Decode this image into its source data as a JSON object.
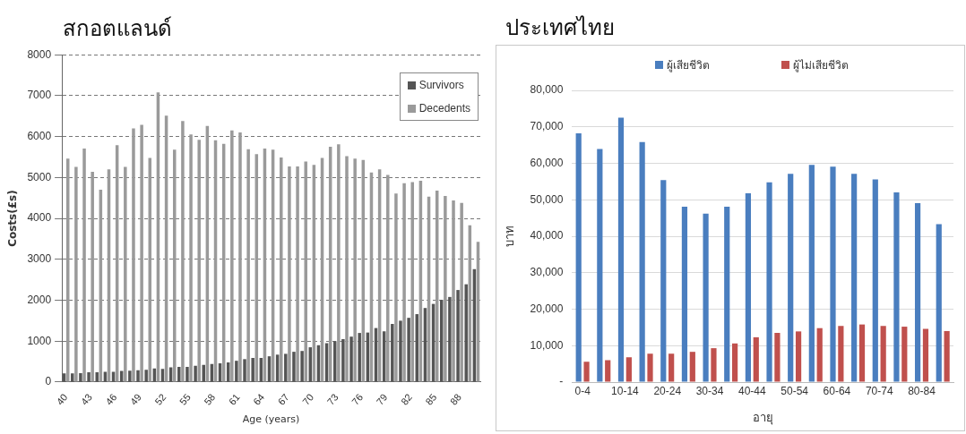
{
  "chart_data": [
    {
      "type": "bar",
      "title": "สกอตแลนด์",
      "xlabel": "Age (years)",
      "ylabel": "Costs(£s)",
      "categories": [
        "40",
        null,
        null,
        "43",
        null,
        null,
        "46",
        null,
        null,
        "49",
        null,
        null,
        "52",
        null,
        null,
        "55",
        null,
        null,
        "58",
        null,
        null,
        "61",
        null,
        null,
        "64",
        null,
        null,
        "67",
        null,
        null,
        "70",
        null,
        null,
        "73",
        null,
        null,
        "76",
        null,
        null,
        "79",
        null,
        null,
        "82",
        null,
        null,
        "85",
        null,
        null,
        "88",
        null,
        null
      ],
      "series": [
        {
          "name": "Survivors",
          "color": "#555555",
          "values": [
            210,
            210,
            220,
            240,
            240,
            250,
            250,
            270,
            280,
            290,
            300,
            330,
            320,
            360,
            370,
            370,
            400,
            420,
            440,
            460,
            480,
            520,
            560,
            590,
            590,
            630,
            670,
            690,
            740,
            760,
            850,
            900,
            950,
            1000,
            1050,
            1110,
            1200,
            1210,
            1320,
            1240,
            1420,
            1500,
            1570,
            1660,
            1810,
            1910,
            2010,
            2080,
            2250,
            2390,
            2760
          ]
        },
        {
          "name": "Decedents",
          "color": "#9a9a9a",
          "values": [
            5460,
            5260,
            5710,
            5140,
            4700,
            5200,
            5790,
            5260,
            6200,
            6290,
            5480,
            7080,
            6510,
            5680,
            6380,
            6050,
            5920,
            6260,
            5910,
            5820,
            6150,
            6100,
            5690,
            5570,
            5710,
            5680,
            5490,
            5270,
            5270,
            5390,
            5310,
            5480,
            5750,
            5810,
            5520,
            5460,
            5430,
            5120,
            5200,
            5060,
            4610,
            4860,
            4890,
            4920,
            4530,
            4680,
            4550,
            4440,
            4380,
            3830,
            3430
          ]
        }
      ],
      "ylim": [
        0,
        8000
      ],
      "yticks": [
        0,
        1000,
        2000,
        3000,
        4000,
        5000,
        6000,
        7000,
        8000
      ],
      "grid": "y",
      "legend": "top right"
    },
    {
      "type": "bar",
      "title": "ประเทศไทย",
      "xlabel": "อายุ",
      "ylabel": "บาท",
      "categories": [
        "0-4",
        null,
        "10-14",
        null,
        "20-24",
        null,
        "30-34",
        null,
        "40-44",
        null,
        "50-54",
        null,
        "60-64",
        null,
        "70-74",
        null,
        "80-84",
        null
      ],
      "series": [
        {
          "name": "ผู้เสียชีวิต",
          "color": "#4a7ebf",
          "values": [
            68200,
            63900,
            72500,
            65800,
            55400,
            48100,
            46200,
            48100,
            51800,
            54800,
            57100,
            59600,
            59100,
            57100,
            55600,
            52000,
            49100,
            43300
          ]
        },
        {
          "name": "ผู้ไม่เสียชีวิต",
          "color": "#c0504d",
          "values": [
            5600,
            6000,
            6800,
            7800,
            7800,
            8300,
            9300,
            10600,
            12300,
            13500,
            13900,
            14800,
            15400,
            15800,
            15400,
            15200,
            14600,
            14000
          ]
        }
      ],
      "ylim": [
        0,
        80000
      ],
      "yticks": [
        {
          "value": 0,
          "label": "-"
        },
        {
          "value": 10000,
          "label": "10,000"
        },
        {
          "value": 20000,
          "label": "20,000"
        },
        {
          "value": 30000,
          "label": "30,000"
        },
        {
          "value": 40000,
          "label": "40,000"
        },
        {
          "value": 50000,
          "label": "50,000"
        },
        {
          "value": 60000,
          "label": "60,000"
        },
        {
          "value": 70000,
          "label": "70,000"
        },
        {
          "value": 80000,
          "label": "80,000"
        }
      ],
      "grid": "y",
      "legend": "top"
    }
  ]
}
